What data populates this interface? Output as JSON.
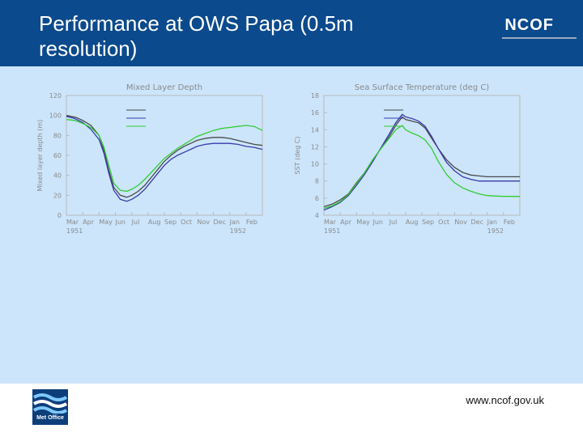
{
  "slide": {
    "title": "Performance at OWS Papa (0.5m\nresolution)",
    "brand": "NCOF",
    "url": "www.ncof.gov.uk",
    "logo_text": "Met Office",
    "header_color": "#0b4a8c",
    "content_bg": "#cce5fb"
  },
  "chart_data": [
    {
      "type": "line",
      "title": "Mixed Layer Depth",
      "ylabel": "Mixed layer depth (m)",
      "xlabel": "",
      "ylim": [
        0,
        120
      ],
      "yticks": [
        0,
        20,
        40,
        60,
        80,
        100,
        120
      ],
      "xlim": [
        3,
        15
      ],
      "xtick_labels": [
        "Mar",
        "Apr",
        "May",
        "Jun",
        "Jul",
        "Aug",
        "Sep",
        "Oct",
        "Nov",
        "Dec",
        "Jan",
        "Feb"
      ],
      "year_labels": [
        {
          "x": 3,
          "text": "1951"
        },
        {
          "x": 13,
          "text": "1952"
        }
      ],
      "grid": false,
      "series": [
        {
          "name": "",
          "color": "#4a4a4a",
          "values": [
            [
              3.0,
              100
            ],
            [
              3.6,
              98
            ],
            [
              4.0,
              95
            ],
            [
              4.5,
              90
            ],
            [
              5.0,
              80
            ],
            [
              5.3,
              65
            ],
            [
              5.6,
              45
            ],
            [
              5.9,
              28
            ],
            [
              6.3,
              20
            ],
            [
              6.7,
              18
            ],
            [
              7.0,
              20
            ],
            [
              7.4,
              24
            ],
            [
              7.8,
              30
            ],
            [
              8.2,
              38
            ],
            [
              8.6,
              46
            ],
            [
              9.0,
              54
            ],
            [
              9.4,
              60
            ],
            [
              9.8,
              65
            ],
            [
              10.2,
              69
            ],
            [
              10.6,
              72
            ],
            [
              11.0,
              75
            ],
            [
              11.5,
              77
            ],
            [
              12.0,
              78
            ],
            [
              12.5,
              78
            ],
            [
              13.0,
              77
            ],
            [
              13.5,
              75
            ],
            [
              14.0,
              73
            ],
            [
              14.5,
              71
            ],
            [
              15.0,
              70
            ]
          ]
        },
        {
          "name": "",
          "color": "#3a3aaa",
          "values": [
            [
              3.0,
              99
            ],
            [
              3.5,
              97
            ],
            [
              4.0,
              93
            ],
            [
              4.5,
              86
            ],
            [
              5.0,
              76
            ],
            [
              5.3,
              62
            ],
            [
              5.6,
              42
            ],
            [
              5.9,
              25
            ],
            [
              6.3,
              16
            ],
            [
              6.7,
              14
            ],
            [
              7.0,
              16
            ],
            [
              7.4,
              20
            ],
            [
              7.8,
              26
            ],
            [
              8.2,
              34
            ],
            [
              8.6,
              42
            ],
            [
              9.0,
              50
            ],
            [
              9.4,
              56
            ],
            [
              9.8,
              60
            ],
            [
              10.2,
              63
            ],
            [
              10.6,
              66
            ],
            [
              11.0,
              69
            ],
            [
              11.5,
              71
            ],
            [
              12.0,
              72
            ],
            [
              12.5,
              72
            ],
            [
              13.0,
              72
            ],
            [
              13.5,
              71
            ],
            [
              14.0,
              69
            ],
            [
              14.5,
              68
            ],
            [
              15.0,
              66
            ]
          ]
        },
        {
          "name": "",
          "color": "#33cc33",
          "values": [
            [
              3.0,
              96
            ],
            [
              3.5,
              95
            ],
            [
              4.0,
              92
            ],
            [
              4.5,
              88
            ],
            [
              5.0,
              80
            ],
            [
              5.3,
              68
            ],
            [
              5.6,
              50
            ],
            [
              5.9,
              32
            ],
            [
              6.3,
              25
            ],
            [
              6.7,
              24
            ],
            [
              7.0,
              26
            ],
            [
              7.4,
              30
            ],
            [
              7.8,
              36
            ],
            [
              8.2,
              43
            ],
            [
              8.6,
              50
            ],
            [
              9.0,
              57
            ],
            [
              9.4,
              62
            ],
            [
              9.8,
              67
            ],
            [
              10.2,
              71
            ],
            [
              10.6,
              75
            ],
            [
              11.0,
              79
            ],
            [
              11.5,
              82
            ],
            [
              12.0,
              85
            ],
            [
              12.5,
              87
            ],
            [
              13.0,
              88
            ],
            [
              13.5,
              89
            ],
            [
              14.0,
              90
            ],
            [
              14.5,
              89
            ],
            [
              15.0,
              85
            ]
          ]
        }
      ]
    },
    {
      "type": "line",
      "title": "Sea Surface Temperature (deg C)",
      "ylabel": "SST (deg C)",
      "xlabel": "",
      "ylim": [
        4,
        18
      ],
      "yticks": [
        4,
        6,
        8,
        10,
        12,
        14,
        16,
        18
      ],
      "xlim": [
        3,
        15
      ],
      "xtick_labels": [
        "Mar",
        "Apr",
        "May",
        "Jun",
        "Jul",
        "Aug",
        "Sep",
        "Oct",
        "Nov",
        "Dec",
        "Jan",
        "Feb"
      ],
      "year_labels": [
        {
          "x": 3,
          "text": "1951"
        },
        {
          "x": 13,
          "text": "1952"
        }
      ],
      "grid": false,
      "series": [
        {
          "name": "",
          "color": "#4a4a4a",
          "values": [
            [
              3.0,
              5.0
            ],
            [
              3.5,
              5.3
            ],
            [
              4.0,
              5.8
            ],
            [
              4.5,
              6.5
            ],
            [
              5.0,
              7.8
            ],
            [
              5.5,
              9.0
            ],
            [
              6.0,
              10.5
            ],
            [
              6.5,
              11.8
            ],
            [
              7.0,
              13.2
            ],
            [
              7.4,
              14.5
            ],
            [
              7.8,
              15.5
            ],
            [
              8.0,
              15.2
            ],
            [
              8.4,
              15.0
            ],
            [
              8.8,
              14.8
            ],
            [
              9.2,
              14.2
            ],
            [
              9.6,
              13.0
            ],
            [
              10.0,
              11.8
            ],
            [
              10.5,
              10.5
            ],
            [
              11.0,
              9.6
            ],
            [
              11.5,
              9.0
            ],
            [
              12.0,
              8.7
            ],
            [
              12.5,
              8.6
            ],
            [
              13.0,
              8.5
            ],
            [
              14.0,
              8.5
            ],
            [
              15.0,
              8.5
            ]
          ]
        },
        {
          "name": "",
          "color": "#3a3aaa",
          "values": [
            [
              3.0,
              4.6
            ],
            [
              3.5,
              5.0
            ],
            [
              4.0,
              5.5
            ],
            [
              4.5,
              6.3
            ],
            [
              5.0,
              7.5
            ],
            [
              5.5,
              8.8
            ],
            [
              6.0,
              10.3
            ],
            [
              6.5,
              11.9
            ],
            [
              7.0,
              13.5
            ],
            [
              7.4,
              14.8
            ],
            [
              7.8,
              15.8
            ],
            [
              8.0,
              15.5
            ],
            [
              8.4,
              15.3
            ],
            [
              8.8,
              15.0
            ],
            [
              9.2,
              14.4
            ],
            [
              9.6,
              13.2
            ],
            [
              10.0,
              11.8
            ],
            [
              10.5,
              10.2
            ],
            [
              11.0,
              9.2
            ],
            [
              11.5,
              8.5
            ],
            [
              12.0,
              8.2
            ],
            [
              12.5,
              8.0
            ],
            [
              13.0,
              8.0
            ],
            [
              14.0,
              8.0
            ],
            [
              15.0,
              8.0
            ]
          ]
        },
        {
          "name": "",
          "color": "#33cc33",
          "values": [
            [
              3.0,
              4.8
            ],
            [
              3.5,
              5.1
            ],
            [
              4.0,
              5.6
            ],
            [
              4.5,
              6.4
            ],
            [
              5.0,
              7.7
            ],
            [
              5.5,
              9.0
            ],
            [
              6.0,
              10.5
            ],
            [
              6.5,
              11.8
            ],
            [
              7.0,
              13.0
            ],
            [
              7.4,
              14.0
            ],
            [
              7.8,
              14.5
            ],
            [
              8.0,
              14.0
            ],
            [
              8.4,
              13.6
            ],
            [
              8.8,
              13.3
            ],
            [
              9.2,
              12.8
            ],
            [
              9.6,
              11.8
            ],
            [
              10.0,
              10.3
            ],
            [
              10.5,
              8.8
            ],
            [
              11.0,
              7.8
            ],
            [
              11.5,
              7.2
            ],
            [
              12.0,
              6.8
            ],
            [
              12.5,
              6.5
            ],
            [
              13.0,
              6.3
            ],
            [
              14.0,
              6.2
            ],
            [
              15.0,
              6.2
            ]
          ]
        }
      ]
    }
  ]
}
